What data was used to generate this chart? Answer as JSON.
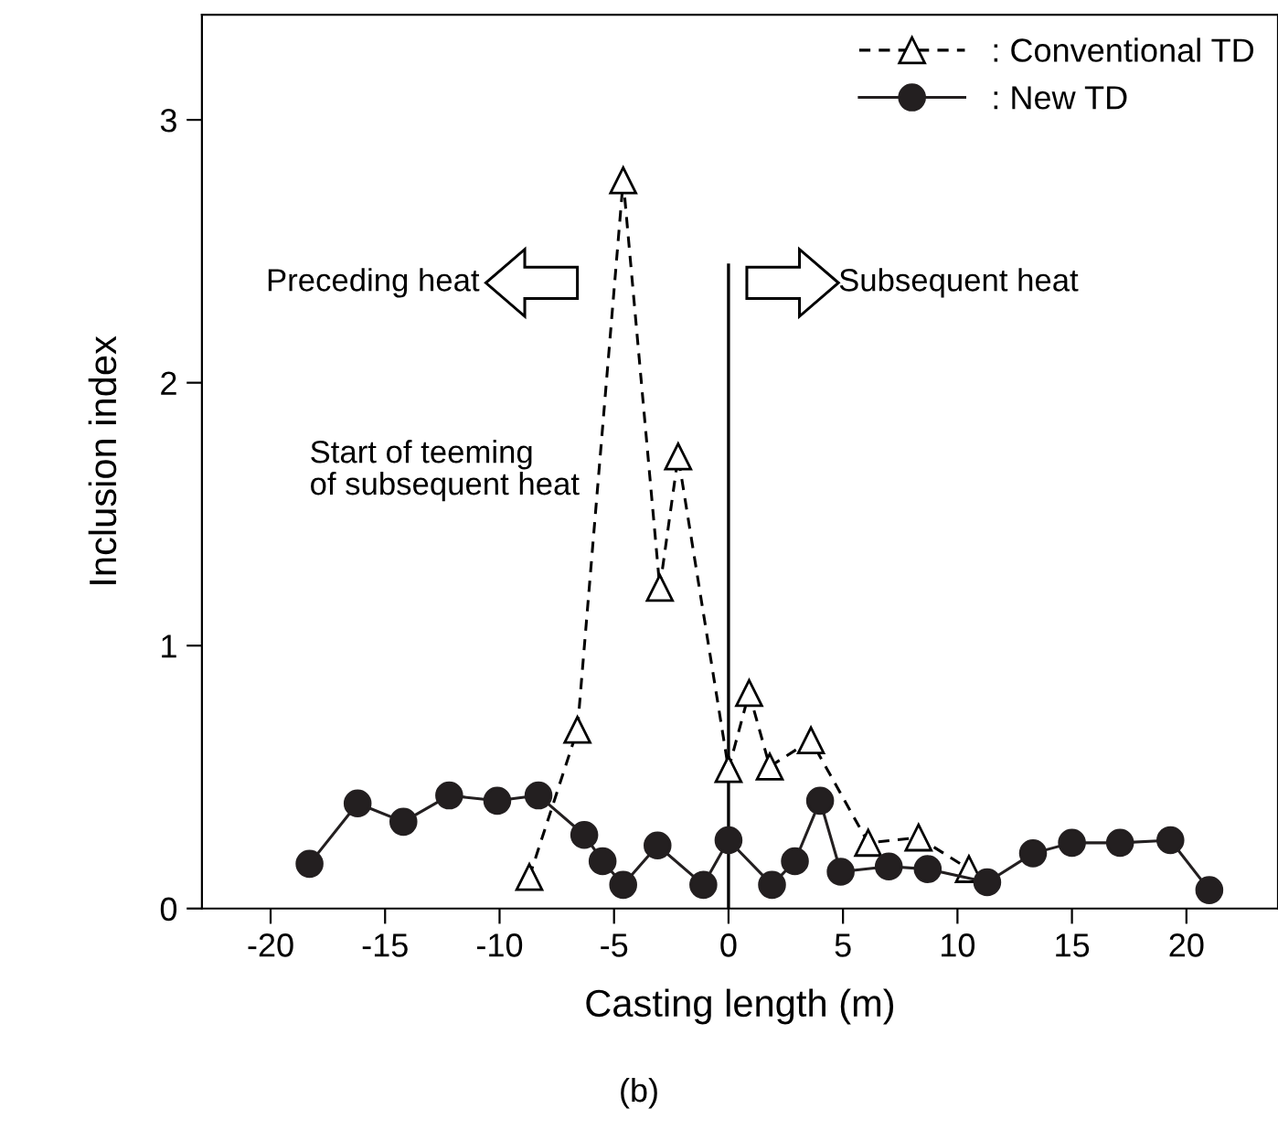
{
  "chart_data": {
    "type": "line",
    "xlabel": "Casting length (m)",
    "ylabel": "Inclusion index",
    "xlim": [
      -23,
      24
    ],
    "xticks": [
      -20,
      -15,
      -10,
      -5,
      0,
      5,
      10,
      15,
      20
    ],
    "ylim": [
      0,
      3.4
    ],
    "yticks": [
      0,
      1,
      2,
      3
    ],
    "series": [
      {
        "name": ": Conventional TD",
        "color": "#000000",
        "marker": "triangle",
        "line_style": "dashed",
        "x": [
          -8.7,
          -6.6,
          -4.6,
          -3.0,
          -2.2,
          0,
          0.9,
          1.8,
          3.6,
          6.1,
          8.3,
          10.5
        ],
        "values": [
          0.12,
          0.68,
          2.77,
          1.22,
          1.72,
          0.53,
          0.82,
          0.54,
          0.64,
          0.25,
          0.27,
          0.15
        ]
      },
      {
        "name": ": New TD",
        "color": "#231f20",
        "marker": "circle",
        "line_style": "solid",
        "x": [
          -18.3,
          -16.2,
          -14.2,
          -12.2,
          -10.1,
          -8.3,
          -6.3,
          -5.5,
          -4.6,
          -3.1,
          -1.1,
          0,
          1.9,
          2.9,
          4.0,
          4.9,
          7.0,
          8.7,
          11.3,
          13.3,
          15.0,
          17.1,
          19.3,
          21.0
        ],
        "values": [
          0.17,
          0.4,
          0.33,
          0.43,
          0.41,
          0.43,
          0.28,
          0.18,
          0.09,
          0.24,
          0.09,
          0.26,
          0.09,
          0.18,
          0.41,
          0.14,
          0.16,
          0.15,
          0.1,
          0.21,
          0.25,
          0.25,
          0.26,
          0.07
        ]
      }
    ],
    "ref_lines": [
      {
        "axis": "x",
        "value": 0,
        "color": "#000000",
        "line_style": "solid"
      }
    ],
    "annotations": [
      "Preceding heat",
      "Subsequent heat",
      "Start of teeming\nof subsequent heat",
      "(b)"
    ],
    "legend": "top right",
    "grid": false
  }
}
